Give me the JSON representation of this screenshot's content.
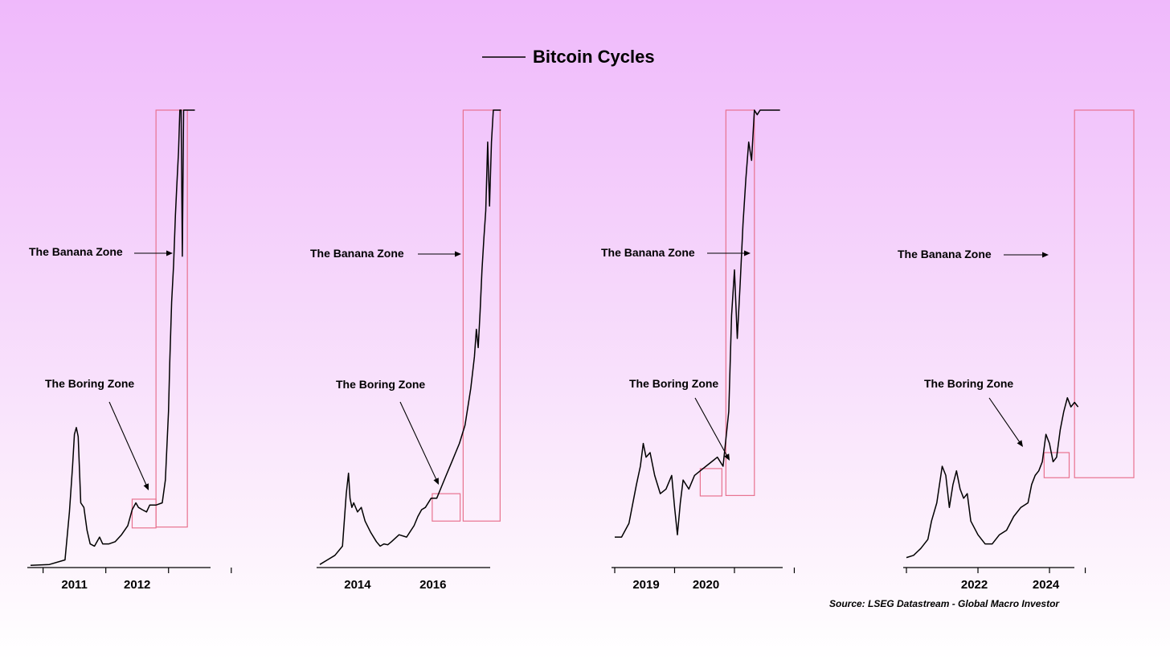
{
  "chart_data": {
    "type": "line",
    "title": "Bitcoin Cycles",
    "legend": {
      "position": "top-center",
      "entries": [
        "Bitcoin Cycles"
      ]
    },
    "source": "Source: LSEG Datastream - Global Macro Investor",
    "grid": false,
    "colors": {
      "line": "#000000",
      "zone_box": "#e8728f"
    },
    "panels": [
      {
        "xlim": [
          2010.0,
          2013.1
        ],
        "x_ticks": [
          2010.2,
          2011.2,
          2012.2,
          2013.2
        ],
        "x_tick_labels": [
          {
            "x": 2010.7,
            "label": "2011"
          },
          {
            "x": 2011.7,
            "label": "2012"
          }
        ],
        "ylim": [
          0,
          100
        ],
        "series": {
          "x": [
            2010.0,
            2010.3,
            2010.55,
            2010.62,
            2010.67,
            2010.7,
            2010.73,
            2010.76,
            2010.8,
            2010.85,
            2010.9,
            2010.95,
            2011.02,
            2011.1,
            2011.15,
            2011.25,
            2011.35,
            2011.45,
            2011.55,
            2011.62,
            2011.68,
            2011.72,
            2011.78,
            2011.85,
            2011.9,
            2012.0,
            2012.1,
            2012.15,
            2012.2,
            2012.22,
            2012.25,
            2012.28,
            2012.31,
            2012.33,
            2012.36,
            2012.38,
            2012.4,
            2012.42,
            2012.44,
            2012.46,
            2012.48,
            2012.5,
            2012.52,
            2012.54,
            2012.56,
            2012.58,
            2012.6,
            2012.62
          ],
          "y": [
            0.3,
            0.5,
            1.5,
            12,
            22,
            29,
            30.5,
            28.5,
            14,
            13,
            8,
            5,
            4.5,
            6.5,
            5,
            5,
            5.5,
            7,
            9,
            12.5,
            14,
            13,
            12.5,
            12,
            13.5,
            13.5,
            14,
            19,
            34,
            45,
            58,
            66,
            77,
            83,
            91,
            100,
            100,
            68,
            100,
            100,
            100,
            100,
            100,
            100,
            100,
            100,
            100,
            100
          ]
        },
        "boring_zone": {
          "x0": 2011.62,
          "x1": 2012.0,
          "y0": 8.5,
          "y1": 14.8
        },
        "banana_zone": {
          "x0": 2012.0,
          "x1": 2012.5,
          "y0": 8.7,
          "y1": 100
        }
      },
      {
        "xlim": [
          2013.0,
          2017.9
        ],
        "x_ticks": [],
        "x_tick_labels": [
          {
            "x": 2014.0,
            "label": "2014"
          },
          {
            "x": 2016.0,
            "label": "2016"
          }
        ],
        "ylim": [
          0,
          100
        ],
        "series": {
          "x": [
            2013.0,
            2013.2,
            2013.4,
            2013.6,
            2013.7,
            2013.76,
            2013.8,
            2013.85,
            2013.9,
            2014.0,
            2014.1,
            2014.2,
            2014.35,
            2014.5,
            2014.6,
            2014.7,
            2014.8,
            2014.9,
            2015.1,
            2015.3,
            2015.5,
            2015.6,
            2015.7,
            2015.8,
            2015.95,
            2016.1,
            2016.2,
            2016.35,
            2016.5,
            2016.6,
            2016.7,
            2016.85,
            2017.0,
            2017.1,
            2017.15,
            2017.2,
            2017.25,
            2017.3,
            2017.35,
            2017.4,
            2017.45,
            2017.5,
            2017.55,
            2017.6,
            2017.65,
            2017.7,
            2017.75,
            2017.8
          ],
          "y": [
            0.5,
            1.5,
            2.5,
            4.5,
            16,
            20.5,
            15,
            13,
            14,
            12,
            13,
            10,
            7.5,
            5.5,
            4.5,
            5,
            4.8,
            5.5,
            7,
            6.5,
            9,
            11,
            12.5,
            13,
            15,
            15,
            17,
            20,
            23,
            25,
            27,
            31,
            39,
            46,
            52,
            48,
            56,
            65,
            72,
            78,
            93,
            79,
            93,
            100,
            100,
            100,
            100,
            100
          ]
        },
        "boring_zone": {
          "x0": 2015.98,
          "x1": 2016.72,
          "y0": 10,
          "y1": 16
        },
        "banana_zone": {
          "x0": 2016.8,
          "x1": 2017.78,
          "y0": 10,
          "y1": 100
        }
      },
      {
        "xlim": [
          2018.0,
          2021.2
        ],
        "x_ticks": [
          2018.0,
          2019.05,
          2020.1,
          2021.15
        ],
        "x_tick_labels": [
          {
            "x": 2018.55,
            "label": "2019"
          },
          {
            "x": 2019.6,
            "label": "2020"
          }
        ],
        "ylim": [
          0,
          100
        ],
        "series": {
          "x": [
            2018.0,
            2018.12,
            2018.25,
            2018.38,
            2018.45,
            2018.5,
            2018.55,
            2018.62,
            2018.7,
            2018.8,
            2018.9,
            2019.0,
            2019.05,
            2019.1,
            2019.15,
            2019.2,
            2019.3,
            2019.4,
            2019.5,
            2019.6,
            2019.7,
            2019.8,
            2019.9,
            2020.0,
            2020.05,
            2020.1,
            2020.15,
            2020.2,
            2020.25,
            2020.3,
            2020.35,
            2020.4,
            2020.45,
            2020.5,
            2020.55,
            2020.6,
            2020.65,
            2020.7,
            2020.75,
            2020.8,
            2020.85,
            2020.9
          ],
          "y": [
            6.5,
            6.5,
            9.5,
            18,
            22,
            27,
            24,
            25,
            20,
            16,
            17,
            20,
            13,
            7,
            14,
            19,
            17,
            20,
            21,
            22,
            23,
            24,
            22,
            34,
            55,
            65,
            50,
            62,
            75,
            85,
            93,
            89,
            100,
            99,
            100,
            100,
            100,
            100,
            100,
            100,
            100,
            100
          ]
        },
        "boring_zone": {
          "x0": 2019.5,
          "x1": 2019.88,
          "y0": 15.5,
          "y1": 21.5
        },
        "banana_zone": {
          "x0": 2019.95,
          "x1": 2020.45,
          "y0": 15.6,
          "y1": 100
        }
      },
      {
        "xlim": [
          2020.1,
          2025.2
        ],
        "x_ticks": [
          2020.1,
          2022.1,
          2024.1,
          2025.1
        ],
        "x_tick_labels": [
          {
            "x": 2022.0,
            "label": "2022"
          },
          {
            "x": 2024.0,
            "label": "2024"
          }
        ],
        "ylim": [
          0,
          100
        ],
        "series": {
          "x": [
            2020.1,
            2020.3,
            2020.5,
            2020.7,
            2020.8,
            2020.95,
            2021.1,
            2021.2,
            2021.3,
            2021.4,
            2021.5,
            2021.6,
            2021.7,
            2021.8,
            2021.9,
            2022.1,
            2022.3,
            2022.5,
            2022.7,
            2022.9,
            2023.1,
            2023.3,
            2023.5,
            2023.6,
            2023.7,
            2023.8,
            2023.9,
            2024.0,
            2024.1,
            2024.2,
            2024.3,
            2024.4,
            2024.5,
            2024.6,
            2024.7,
            2024.8,
            2024.9
          ],
          "y": [
            2,
            2.5,
            4,
            6,
            10,
            14,
            22,
            20,
            13,
            18,
            21,
            17,
            15,
            16,
            10,
            7,
            5,
            5,
            7,
            8,
            11,
            13,
            14,
            18,
            20,
            21,
            23,
            29,
            27,
            23,
            24,
            30,
            34,
            37,
            35,
            36,
            35
          ]
        },
        "boring_zone": {
          "x0": 2023.95,
          "x1": 2024.65,
          "y0": 19.5,
          "y1": 25
        },
        "banana_zone": {
          "x0": 2024.8,
          "x1": 2025.95,
          "y0": 19.5,
          "y1": 100
        }
      }
    ],
    "annotations": [
      "The Banana Zone",
      "The Boring Zone"
    ]
  }
}
